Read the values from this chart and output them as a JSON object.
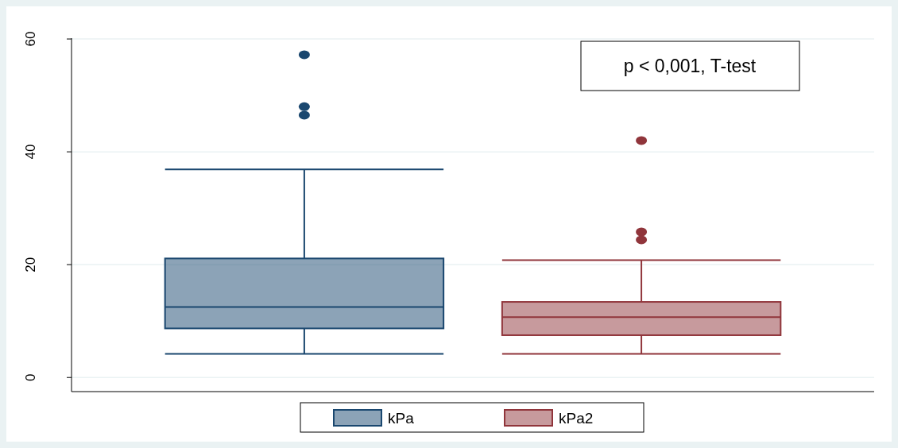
{
  "chart_data": {
    "type": "box",
    "categories": [
      null
    ],
    "ylim": [
      -2.5,
      65.5
    ],
    "yticks": [
      0,
      20,
      40,
      60
    ],
    "grid": "y",
    "legend": "bottom",
    "series": [
      {
        "name": "kPa",
        "color": "#1a476f",
        "boxes": [
          {
            "low": 4.2,
            "q1": 8.7,
            "median": 12.5,
            "q3": 21.1,
            "high": 36.9,
            "outliers": [
              57.2,
              48.0,
              46.5
            ]
          }
        ]
      },
      {
        "name": "kPa2",
        "color": "#90353b",
        "boxes": [
          {
            "low": 4.2,
            "q1": 7.5,
            "median": 10.7,
            "q3": 13.4,
            "high": 20.8,
            "outliers": [
              42.0,
              25.8,
              24.4
            ]
          }
        ]
      }
    ],
    "annotations": [
      "p < 0,001, T-test"
    ]
  }
}
